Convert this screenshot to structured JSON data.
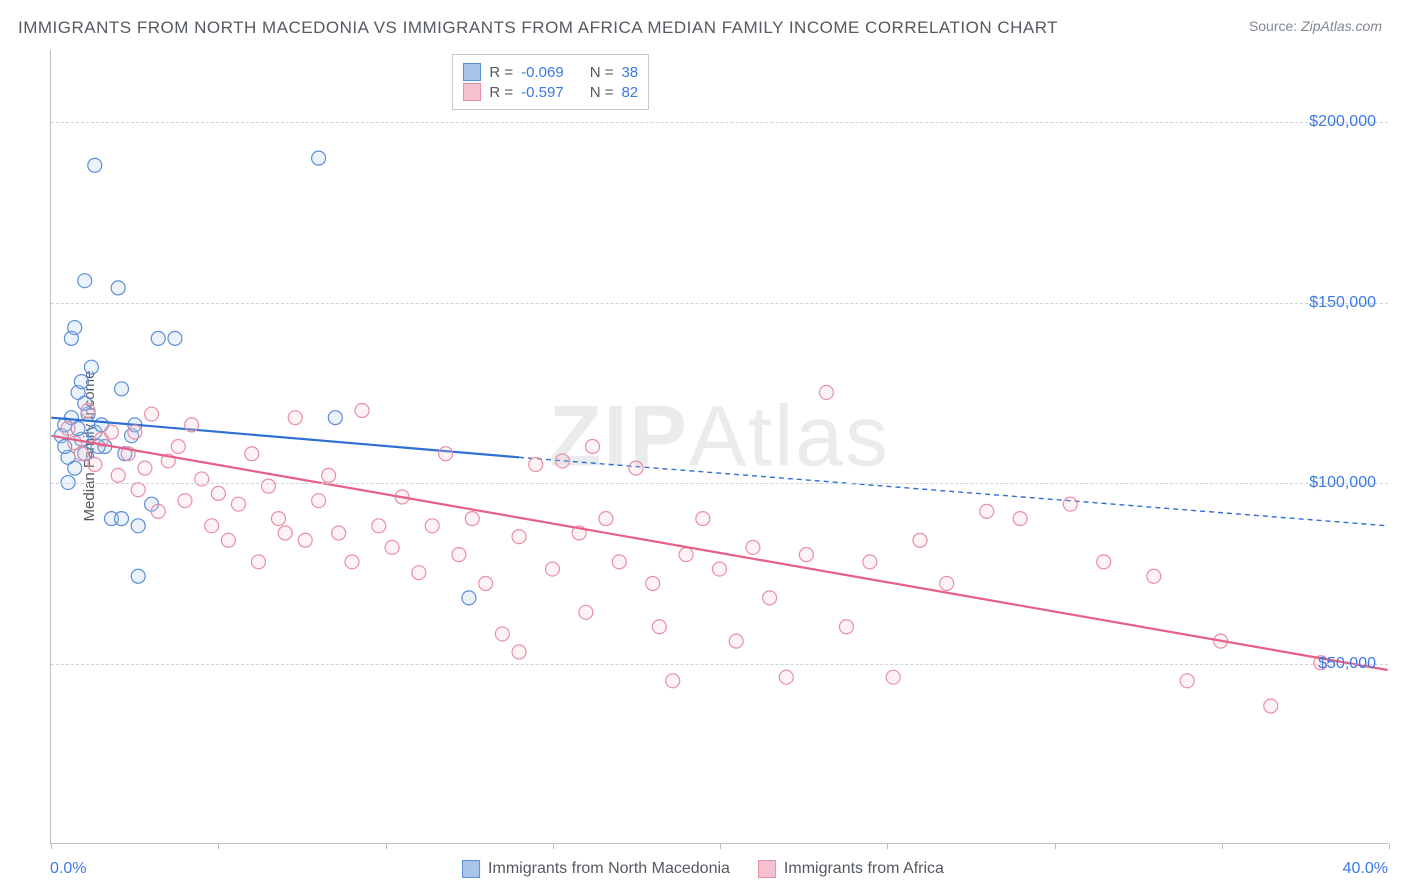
{
  "title": "IMMIGRANTS FROM NORTH MACEDONIA VS IMMIGRANTS FROM AFRICA MEDIAN FAMILY INCOME CORRELATION CHART",
  "source_prefix": "Source:",
  "source_name": "ZipAtlas.com",
  "watermark": "ZIPAtlas",
  "y_axis_label": "Median Family Income",
  "chart": {
    "type": "scatter",
    "xlim": [
      0,
      40
    ],
    "ylim": [
      0,
      220000
    ],
    "x_ticks": [
      0,
      5,
      10,
      15,
      20,
      25,
      30,
      35,
      40
    ],
    "x_tick_labels_shown": {
      "0": "0.0%",
      "40": "40.0%"
    },
    "y_ticks": [
      50000,
      100000,
      150000,
      200000
    ],
    "y_tick_labels": [
      "$50,000",
      "$100,000",
      "$150,000",
      "$200,000"
    ],
    "grid_color": "#d0d4d8",
    "axis_color": "#b9bfc5",
    "background_color": "#ffffff",
    "marker_radius": 7,
    "marker_stroke_width": 1.2,
    "marker_fill_opacity": 0.22,
    "line_width": 2.2
  },
  "series": [
    {
      "name": "Immigrants from North Macedonia",
      "color_stroke": "#5b8fd6",
      "color_fill": "#a9c6ea",
      "line_color": "#2e6fd3",
      "stats": {
        "R": "-0.069",
        "N": "38"
      },
      "regression": {
        "x0": 0,
        "y0": 118000,
        "x_solid_end": 14,
        "y_solid_end": 107000,
        "x1": 40,
        "y1": 88000
      },
      "points": [
        [
          0.3,
          113000
        ],
        [
          0.4,
          116000
        ],
        [
          0.5,
          107000
        ],
        [
          0.6,
          140000
        ],
        [
          0.7,
          143000
        ],
        [
          0.8,
          125000
        ],
        [
          0.9,
          128000
        ],
        [
          1.0,
          156000
        ],
        [
          1.1,
          119000
        ],
        [
          1.3,
          188000
        ],
        [
          0.5,
          100000
        ],
        [
          0.7,
          104000
        ],
        [
          0.9,
          112000
        ],
        [
          1.0,
          108000
        ],
        [
          1.2,
          132000
        ],
        [
          1.3,
          114000
        ],
        [
          1.5,
          116000
        ],
        [
          1.6,
          110000
        ],
        [
          2.0,
          154000
        ],
        [
          2.1,
          126000
        ],
        [
          2.2,
          108000
        ],
        [
          2.4,
          113000
        ],
        [
          2.6,
          88000
        ],
        [
          2.6,
          74000
        ],
        [
          3.0,
          94000
        ],
        [
          3.2,
          140000
        ],
        [
          3.7,
          140000
        ],
        [
          1.8,
          90000
        ],
        [
          2.1,
          90000
        ],
        [
          2.5,
          116000
        ],
        [
          0.6,
          118000
        ],
        [
          0.8,
          115000
        ],
        [
          1.0,
          122000
        ],
        [
          1.4,
          110000
        ],
        [
          8.0,
          190000
        ],
        [
          8.5,
          118000
        ],
        [
          12.5,
          68000
        ],
        [
          0.4,
          110000
        ]
      ]
    },
    {
      "name": "Immigrants from Africa",
      "color_stroke": "#e88fa6",
      "color_fill": "#f4c2cf",
      "line_color": "#e85f85",
      "stats": {
        "R": "-0.597",
        "N": "82"
      },
      "regression": {
        "x0": 0,
        "y0": 113000,
        "x_solid_end": 40,
        "y_solid_end": 48000,
        "x1": 40,
        "y1": 48000
      },
      "points": [
        [
          0.5,
          115000
        ],
        [
          0.7,
          111000
        ],
        [
          0.9,
          108000
        ],
        [
          1.1,
          120000
        ],
        [
          1.3,
          105000
        ],
        [
          1.5,
          112000
        ],
        [
          1.8,
          114000
        ],
        [
          2.0,
          102000
        ],
        [
          2.3,
          108000
        ],
        [
          2.5,
          114000
        ],
        [
          2.6,
          98000
        ],
        [
          2.8,
          104000
        ],
        [
          3.0,
          119000
        ],
        [
          3.2,
          92000
        ],
        [
          3.5,
          106000
        ],
        [
          3.8,
          110000
        ],
        [
          4.0,
          95000
        ],
        [
          4.2,
          116000
        ],
        [
          4.5,
          101000
        ],
        [
          4.8,
          88000
        ],
        [
          5.0,
          97000
        ],
        [
          5.3,
          84000
        ],
        [
          5.6,
          94000
        ],
        [
          6.0,
          108000
        ],
        [
          6.2,
          78000
        ],
        [
          6.5,
          99000
        ],
        [
          6.8,
          90000
        ],
        [
          7.0,
          86000
        ],
        [
          7.3,
          118000
        ],
        [
          7.6,
          84000
        ],
        [
          8.0,
          95000
        ],
        [
          8.3,
          102000
        ],
        [
          8.6,
          86000
        ],
        [
          9.0,
          78000
        ],
        [
          9.3,
          120000
        ],
        [
          9.8,
          88000
        ],
        [
          10.2,
          82000
        ],
        [
          10.5,
          96000
        ],
        [
          11.0,
          75000
        ],
        [
          11.4,
          88000
        ],
        [
          11.8,
          108000
        ],
        [
          12.2,
          80000
        ],
        [
          12.6,
          90000
        ],
        [
          13.0,
          72000
        ],
        [
          13.5,
          58000
        ],
        [
          14.0,
          85000
        ],
        [
          14.0,
          53000
        ],
        [
          14.5,
          105000
        ],
        [
          15.0,
          76000
        ],
        [
          15.3,
          106000
        ],
        [
          15.8,
          86000
        ],
        [
          16.0,
          64000
        ],
        [
          16.2,
          110000
        ],
        [
          16.6,
          90000
        ],
        [
          17.0,
          78000
        ],
        [
          17.5,
          104000
        ],
        [
          18.0,
          72000
        ],
        [
          18.2,
          60000
        ],
        [
          18.6,
          45000
        ],
        [
          19.0,
          80000
        ],
        [
          19.5,
          90000
        ],
        [
          20.0,
          76000
        ],
        [
          20.5,
          56000
        ],
        [
          21.0,
          82000
        ],
        [
          21.5,
          68000
        ],
        [
          22.0,
          46000
        ],
        [
          22.6,
          80000
        ],
        [
          23.2,
          125000
        ],
        [
          23.8,
          60000
        ],
        [
          24.5,
          78000
        ],
        [
          25.2,
          46000
        ],
        [
          26.0,
          84000
        ],
        [
          26.8,
          72000
        ],
        [
          28.0,
          92000
        ],
        [
          29.0,
          90000
        ],
        [
          30.5,
          94000
        ],
        [
          31.5,
          78000
        ],
        [
          33.0,
          74000
        ],
        [
          34.0,
          45000
        ],
        [
          35.0,
          56000
        ],
        [
          36.5,
          38000
        ],
        [
          38.0,
          50000
        ]
      ]
    }
  ],
  "stats_box_labels": {
    "R": "R",
    "N": "N",
    "eq": "="
  },
  "legend_bottom": [
    {
      "swatch_fill": "#a9c6ea",
      "swatch_stroke": "#5b8fd6",
      "label": "Immigrants from North Macedonia"
    },
    {
      "swatch_fill": "#f4c2cf",
      "swatch_stroke": "#e88fa6",
      "label": "Immigrants from Africa"
    }
  ]
}
